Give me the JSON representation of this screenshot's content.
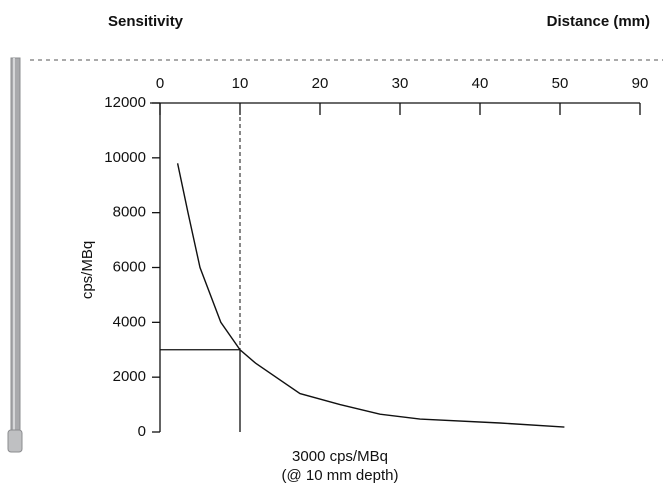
{
  "chart_data": {
    "type": "line",
    "title": "Sensitivity",
    "xlabel": "Distance (mm)",
    "ylabel": "cps/MBq",
    "x": [
      2.2,
      3.5,
      5,
      7.6,
      10,
      12,
      17.5,
      22.5,
      27.5,
      32.5,
      42.5,
      52.2
    ],
    "series": [
      {
        "name": "Sensitivity",
        "color": "#111111",
        "values": [
          9800,
          8000,
          6000,
          4000,
          3000,
          2500,
          1400,
          1000,
          650,
          470,
          330,
          180
        ]
      }
    ],
    "xlim": [
      0,
      90
    ],
    "xticks": [
      0,
      10,
      20,
      30,
      40,
      50,
      90
    ],
    "ylim": [
      0,
      12000
    ],
    "yticks": [
      0,
      2000,
      4000,
      6000,
      8000,
      10000,
      12000
    ],
    "reference": {
      "x": 10,
      "y": 3000
    },
    "annotation": [
      "3000 cps/MBq",
      "(@ 10 mm depth)"
    ]
  }
}
